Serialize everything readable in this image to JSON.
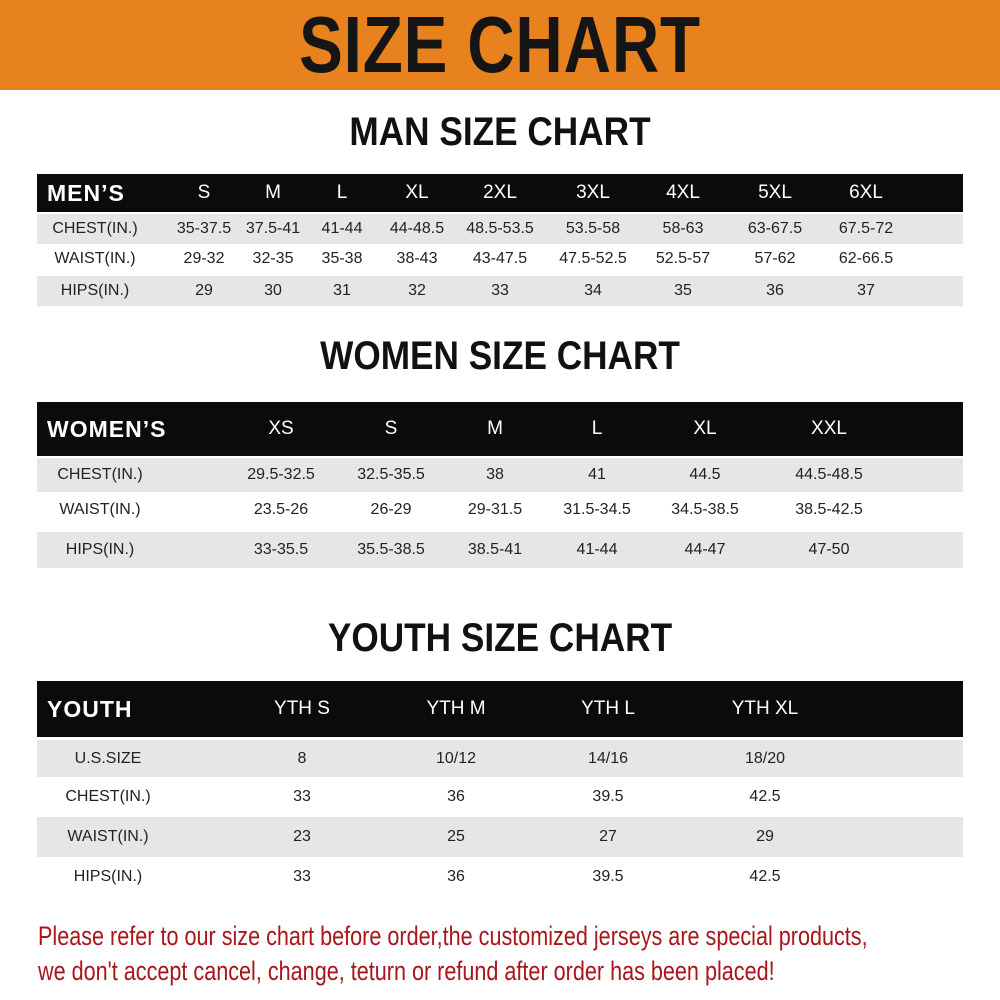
{
  "banner_title": "SIZE CHART",
  "men": {
    "title": "MAN SIZE CHART",
    "header": [
      "MEN’S",
      "S",
      "M",
      "L",
      "XL",
      "2XL",
      "3XL",
      "4XL",
      "5XL",
      "6XL"
    ],
    "rows": [
      [
        "CHEST(IN.)",
        "35-37.5",
        "37.5-41",
        "41-44",
        "44-48.5",
        "48.5-53.5",
        "53.5-58",
        "58-63",
        "63-67.5",
        "67.5-72"
      ],
      [
        "WAIST(IN.)",
        "29-32",
        "32-35",
        "35-38",
        "38-43",
        "43-47.5",
        "47.5-52.5",
        "52.5-57",
        "57-62",
        "62-66.5"
      ],
      [
        "HIPS(IN.)",
        "29",
        "30",
        "31",
        "32",
        "33",
        "34",
        "35",
        "36",
        "37"
      ]
    ]
  },
  "women": {
    "title": "WOMEN SIZE CHART",
    "header": [
      "WOMEN’S",
      "XS",
      "S",
      "M",
      "L",
      "XL",
      "XXL"
    ],
    "rows": [
      [
        "CHEST(IN.)",
        "29.5-32.5",
        "32.5-35.5",
        "38",
        "41",
        "44.5",
        "44.5-48.5"
      ],
      [
        "WAIST(IN.)",
        "23.5-26",
        "26-29",
        "29-31.5",
        "31.5-34.5",
        "34.5-38.5",
        "38.5-42.5"
      ],
      [
        "HIPS(IN.)",
        "33-35.5",
        "35.5-38.5",
        "38.5-41",
        "41-44",
        "44-47",
        "47-50"
      ]
    ]
  },
  "youth": {
    "title": "YOUTH SIZE CHART",
    "header": [
      "YOUTH",
      "YTH S",
      "YTH M",
      "YTH L",
      "YTH XL"
    ],
    "rows": [
      [
        "U.S.SIZE",
        "8",
        "10/12",
        "14/16",
        "18/20"
      ],
      [
        "CHEST(IN.)",
        "33",
        "36",
        "39.5",
        "42.5"
      ],
      [
        "WAIST(IN.)",
        "23",
        "25",
        "27",
        "29"
      ],
      [
        "HIPS(IN.)",
        "33",
        "36",
        "39.5",
        "42.5"
      ]
    ]
  },
  "notice": {
    "line1": "Please refer to our size chart before order,the customized jerseys are special products,",
    "line2": "we don't accept cancel, change, teturn or refund after order has been placed!"
  },
  "colors": {
    "banner": "#e8821e",
    "header_row": "#0d0a0a",
    "stripe": "#e6e6e6",
    "notice": "#a8161b"
  }
}
